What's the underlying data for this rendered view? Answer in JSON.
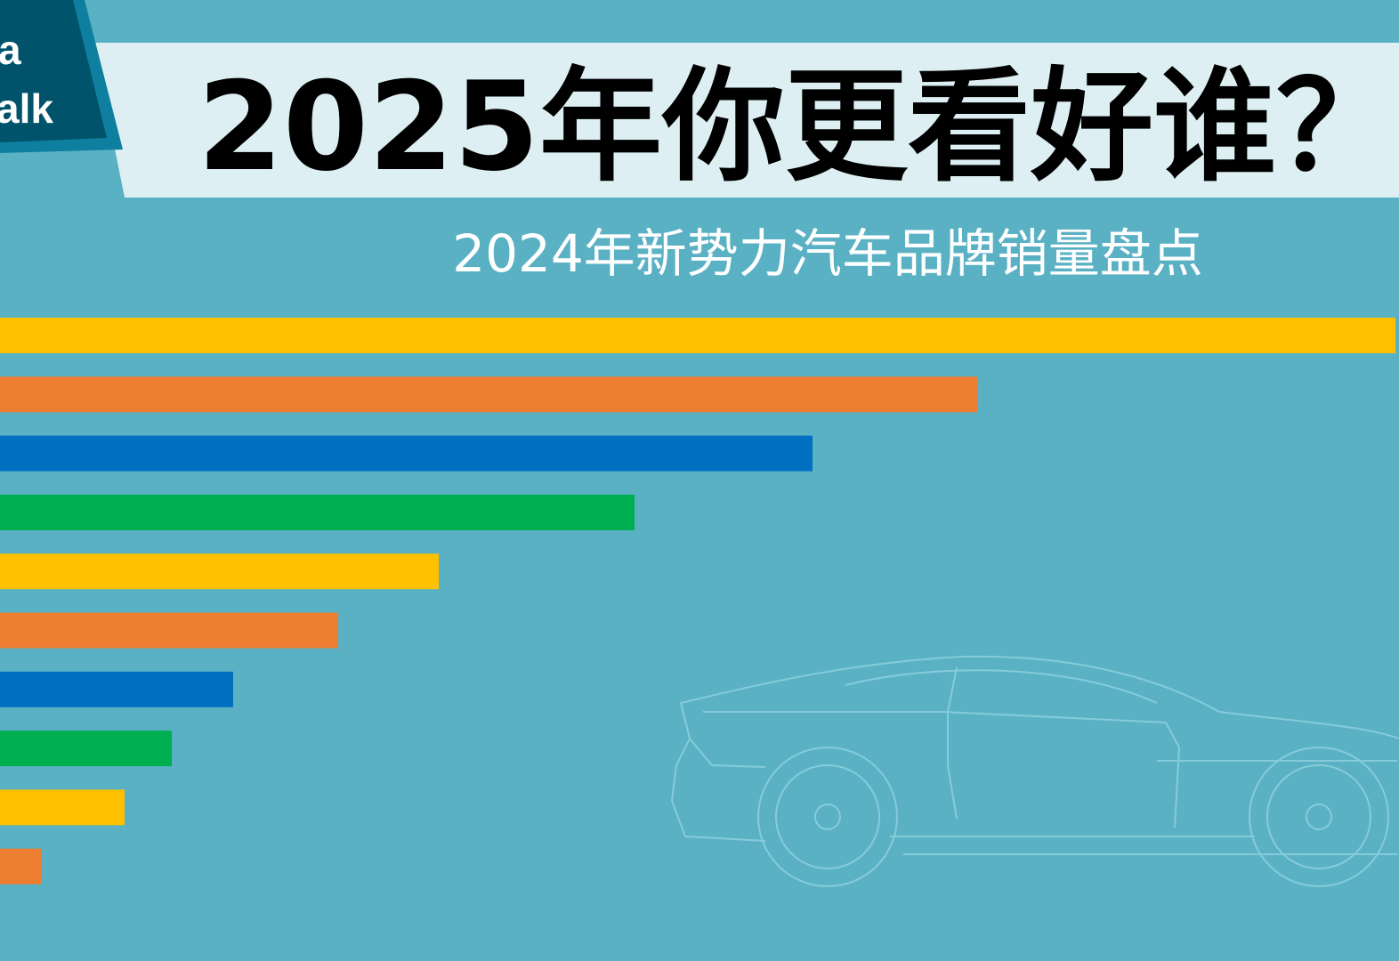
{
  "logo": {
    "lines": [
      "a",
      "alk"
    ]
  },
  "chart_data": {
    "type": "hbar",
    "title": "2025年你更看好谁？",
    "subtitle": "2024年新势力汽车品牌销量盘点",
    "categories": [
      null,
      null,
      null,
      null,
      null,
      null,
      null,
      null,
      null,
      null
    ],
    "values": [
      1568,
      1098,
      913,
      713,
      493,
      380,
      262,
      193,
      140,
      47
    ],
    "colors": [
      "#FFC000",
      "#ED7D31",
      "#0070C0",
      "#00B050",
      "#FFC000",
      "#ED7D31",
      "#0070C0",
      "#00B050",
      "#FFC000",
      "#ED7D31"
    ],
    "xlim": [
      0,
      1568
    ]
  }
}
